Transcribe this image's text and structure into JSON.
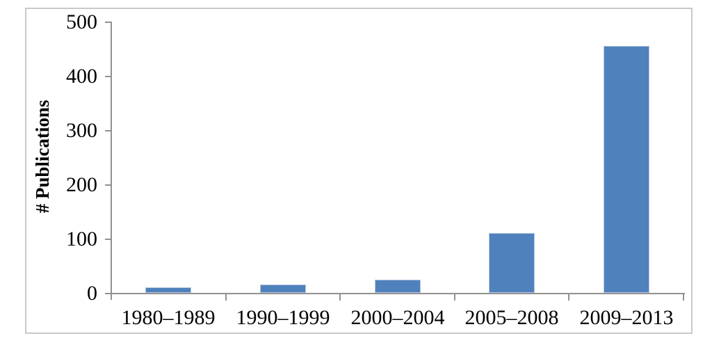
{
  "chart_data": {
    "type": "bar",
    "title": "",
    "ylabel": "# Publications",
    "xlabel": "",
    "categories": [
      "1980–1989",
      "1990–1999",
      "2000–2004",
      "2005–2008",
      "2009–2013"
    ],
    "values": [
      10,
      15,
      24,
      110,
      455
    ],
    "yticks": [
      0,
      100,
      200,
      300,
      400,
      500
    ],
    "ylim": [
      0,
      500
    ],
    "grid": false,
    "legend": false,
    "colors": {
      "bar_fill": "#4f81bd",
      "bar_border": "#b7c6de",
      "axis": "#919191",
      "frame_border": "#c9c9c9",
      "text": "#000000",
      "background": "#ffffff"
    }
  }
}
